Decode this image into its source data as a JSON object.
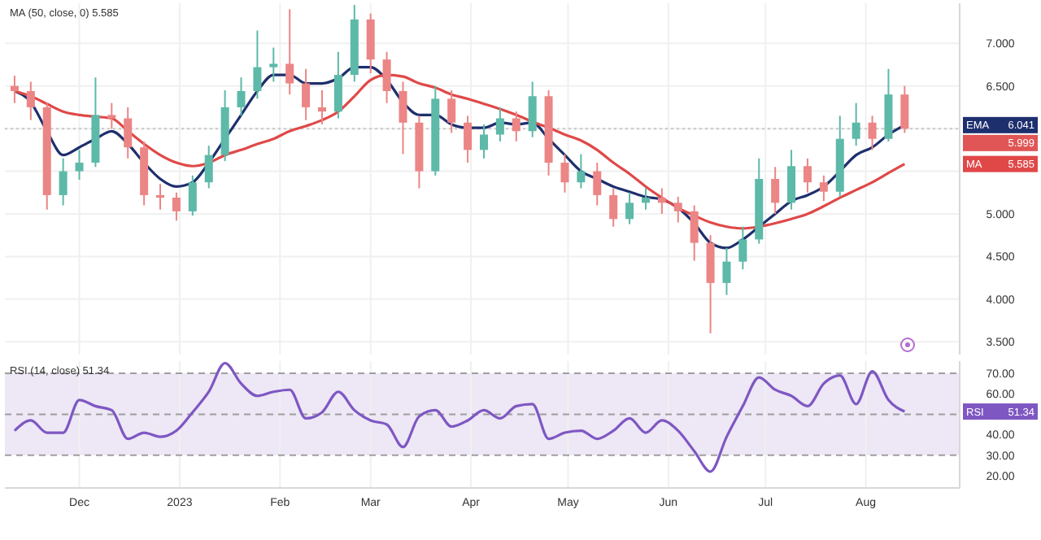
{
  "chart_data": [
    {
      "type": "candlestick",
      "title": "MA (50, close, 0) 5.585",
      "x": [
        "2022-11-11",
        "2022-11-16",
        "2022-11-21",
        "2022-11-26",
        "2022-12-01",
        "2022-12-06",
        "2022-12-11",
        "2022-12-16",
        "2022-12-21",
        "2022-12-26",
        "2022-12-31",
        "2023-01-05",
        "2023-01-10",
        "2023-01-15",
        "2023-01-20",
        "2023-01-25",
        "2023-01-30",
        "2023-02-04",
        "2023-02-09",
        "2023-02-14",
        "2023-02-19",
        "2023-02-24",
        "2023-03-01",
        "2023-03-06",
        "2023-03-11",
        "2023-03-16",
        "2023-03-21",
        "2023-03-26",
        "2023-03-31",
        "2023-04-05",
        "2023-04-10",
        "2023-04-15",
        "2023-04-20",
        "2023-04-25",
        "2023-04-30",
        "2023-05-05",
        "2023-05-10",
        "2023-05-15",
        "2023-05-20",
        "2023-05-25",
        "2023-05-30",
        "2023-06-04",
        "2023-06-09",
        "2023-06-14",
        "2023-06-19",
        "2023-06-24",
        "2023-06-29",
        "2023-07-04",
        "2023-07-09",
        "2023-07-14",
        "2023-07-19",
        "2023-07-24",
        "2023-07-29",
        "2023-08-03",
        "2023-08-08",
        "2023-08-13"
      ],
      "ohlc": [
        [
          6.5,
          6.62,
          6.3,
          6.44
        ],
        [
          6.44,
          6.55,
          6.1,
          6.25
        ],
        [
          6.25,
          6.3,
          5.05,
          5.22
        ],
        [
          5.22,
          5.65,
          5.1,
          5.5
        ],
        [
          5.5,
          5.75,
          5.4,
          5.6
        ],
        [
          5.6,
          6.6,
          5.55,
          6.16
        ],
        [
          6.16,
          6.3,
          6.0,
          6.12
        ],
        [
          6.12,
          6.25,
          5.65,
          5.78
        ],
        [
          5.78,
          5.85,
          5.1,
          5.22
        ],
        [
          5.22,
          5.35,
          5.05,
          5.19
        ],
        [
          5.19,
          5.25,
          4.92,
          5.03
        ],
        [
          5.03,
          5.45,
          4.98,
          5.37
        ],
        [
          5.37,
          5.8,
          5.3,
          5.69
        ],
        [
          5.69,
          6.45,
          5.62,
          6.25
        ],
        [
          6.25,
          6.6,
          6.15,
          6.44
        ],
        [
          6.44,
          7.15,
          6.35,
          6.72
        ],
        [
          6.72,
          6.95,
          6.55,
          6.76
        ],
        [
          6.76,
          7.4,
          6.4,
          6.53
        ],
        [
          6.53,
          6.7,
          6.1,
          6.25
        ],
        [
          6.25,
          6.45,
          6.05,
          6.2
        ],
        [
          6.2,
          6.9,
          6.12,
          6.63
        ],
        [
          6.63,
          7.45,
          6.55,
          7.28
        ],
        [
          7.28,
          7.35,
          6.65,
          6.81
        ],
        [
          6.81,
          6.9,
          6.3,
          6.44
        ],
        [
          6.44,
          6.55,
          5.7,
          6.07
        ],
        [
          6.07,
          6.15,
          5.3,
          5.5
        ],
        [
          5.5,
          6.5,
          5.45,
          6.35
        ],
        [
          6.35,
          6.45,
          5.95,
          6.07
        ],
        [
          6.07,
          6.15,
          5.6,
          5.75
        ],
        [
          5.75,
          6.05,
          5.65,
          5.93
        ],
        [
          5.93,
          6.25,
          5.85,
          6.12
        ],
        [
          6.12,
          6.2,
          5.85,
          5.97
        ],
        [
          5.97,
          6.55,
          5.9,
          6.38
        ],
        [
          6.38,
          6.45,
          5.45,
          5.6
        ],
        [
          5.6,
          5.7,
          5.25,
          5.37
        ],
        [
          5.37,
          5.7,
          5.3,
          5.5
        ],
        [
          5.5,
          5.6,
          5.1,
          5.22
        ],
        [
          5.22,
          5.3,
          4.85,
          4.94
        ],
        [
          4.94,
          5.25,
          4.88,
          5.13
        ],
        [
          5.13,
          5.3,
          5.05,
          5.19
        ],
        [
          5.19,
          5.3,
          5.0,
          5.13
        ],
        [
          5.13,
          5.2,
          4.9,
          5.03
        ],
        [
          5.03,
          5.1,
          4.45,
          4.66
        ],
        [
          4.66,
          4.75,
          3.6,
          4.19
        ],
        [
          4.19,
          4.6,
          4.05,
          4.44
        ],
        [
          4.44,
          4.85,
          4.35,
          4.7
        ],
        [
          4.7,
          5.65,
          4.65,
          5.41
        ],
        [
          5.41,
          5.55,
          5.0,
          5.13
        ],
        [
          5.13,
          5.75,
          5.05,
          5.56
        ],
        [
          5.56,
          5.65,
          5.25,
          5.37
        ],
        [
          5.37,
          5.45,
          5.15,
          5.26
        ],
        [
          5.26,
          6.15,
          5.2,
          5.88
        ],
        [
          5.88,
          6.3,
          5.8,
          6.07
        ],
        [
          6.07,
          6.15,
          5.75,
          5.88
        ],
        [
          5.88,
          6.7,
          5.85,
          6.4
        ],
        [
          6.4,
          6.5,
          5.95,
          5.999
        ]
      ],
      "series": [
        {
          "name": "EMA",
          "type": "line",
          "color": "#1e2f6e",
          "values": [
            6.44,
            6.31,
            5.97,
            5.69,
            5.78,
            5.88,
            5.97,
            5.82,
            5.6,
            5.41,
            5.32,
            5.37,
            5.6,
            5.88,
            6.16,
            6.44,
            6.63,
            6.63,
            6.53,
            6.53,
            6.59,
            6.72,
            6.72,
            6.57,
            6.31,
            6.16,
            6.16,
            6.05,
            6.01,
            6.01,
            6.07,
            6.05,
            6.07,
            5.88,
            5.69,
            5.5,
            5.41,
            5.32,
            5.26,
            5.2,
            5.17,
            5.07,
            4.89,
            4.66,
            4.6,
            4.7,
            4.85,
            5.0,
            5.15,
            5.22,
            5.32,
            5.5,
            5.69,
            5.78,
            5.93,
            6.041
          ]
        },
        {
          "name": "MA",
          "type": "line",
          "color": "#e04848",
          "values": [
            6.44,
            6.38,
            6.29,
            6.2,
            6.16,
            6.14,
            6.12,
            5.97,
            5.82,
            5.69,
            5.6,
            5.56,
            5.6,
            5.69,
            5.75,
            5.82,
            5.88,
            5.97,
            6.03,
            6.1,
            6.2,
            6.38,
            6.57,
            6.63,
            6.61,
            6.53,
            6.48,
            6.4,
            6.35,
            6.29,
            6.23,
            6.16,
            6.08,
            6.01,
            5.93,
            5.86,
            5.75,
            5.6,
            5.47,
            5.32,
            5.19,
            5.07,
            4.98,
            4.9,
            4.85,
            4.83,
            4.85,
            4.89,
            4.94,
            5.0,
            5.09,
            5.19,
            5.28,
            5.37,
            5.48,
            5.585
          ]
        }
      ],
      "annotations": [
        "6.041",
        "5.585",
        "5.999"
      ],
      "ref_lines": [
        {
          "axis": "y",
          "value": 5.999,
          "color": "#c8c8c8",
          "line_style": "dotted"
        }
      ],
      "xlim": [
        "2022-11-08",
        "2023-08-30"
      ],
      "xticks": [
        {
          "value": "2022-12-01",
          "label": null
        },
        {
          "value": "2023-01-01",
          "label": null
        },
        {
          "value": "2023-02-01",
          "label": null
        },
        {
          "value": "2023-03-01",
          "label": null
        },
        {
          "value": "2023-04-01",
          "label": null
        },
        {
          "value": "2023-05-01",
          "label": null
        },
        {
          "value": "2023-06-01",
          "label": null
        },
        {
          "value": "2023-07-01",
          "label": null
        },
        {
          "value": "2023-08-01",
          "label": null
        }
      ],
      "ylim": [
        3.35,
        7.47
      ],
      "yticks": [
        {
          "value": 3.5,
          "label": "3.500"
        },
        {
          "value": 4,
          "label": "4.000"
        },
        {
          "value": 4.5,
          "label": "4.500"
        },
        {
          "value": 5,
          "label": "5.000"
        },
        {
          "value": 5.5,
          "label": null
        },
        {
          "value": 6,
          "label": null
        },
        {
          "value": 6.5,
          "label": "6.500"
        },
        {
          "value": 7,
          "label": "7.000"
        }
      ],
      "grid": true,
      "tick_labels": "y"
    },
    {
      "type": "line",
      "title": "RSI (14, close) 51.34",
      "x": [
        "2022-11-11",
        "2022-11-16",
        "2022-11-21",
        "2022-11-26",
        "2022-12-01",
        "2022-12-06",
        "2022-12-11",
        "2022-12-16",
        "2022-12-21",
        "2022-12-26",
        "2022-12-31",
        "2023-01-05",
        "2023-01-10",
        "2023-01-15",
        "2023-01-20",
        "2023-01-25",
        "2023-01-30",
        "2023-02-04",
        "2023-02-09",
        "2023-02-14",
        "2023-02-19",
        "2023-02-24",
        "2023-03-01",
        "2023-03-06",
        "2023-03-11",
        "2023-03-16",
        "2023-03-21",
        "2023-03-26",
        "2023-03-31",
        "2023-04-05",
        "2023-04-10",
        "2023-04-15",
        "2023-04-20",
        "2023-04-25",
        "2023-04-30",
        "2023-05-05",
        "2023-05-10",
        "2023-05-15",
        "2023-05-20",
        "2023-05-25",
        "2023-05-30",
        "2023-06-04",
        "2023-06-09",
        "2023-06-14",
        "2023-06-19",
        "2023-06-24",
        "2023-06-29",
        "2023-07-04",
        "2023-07-09",
        "2023-07-14",
        "2023-07-19",
        "2023-07-24",
        "2023-07-29",
        "2023-08-03",
        "2023-08-08",
        "2023-08-13"
      ],
      "series": [
        {
          "name": "RSI",
          "color": "#7e57c2",
          "values": [
            42,
            47,
            41,
            41,
            57,
            54,
            52,
            38,
            41,
            39,
            42,
            51,
            61,
            75,
            65,
            59,
            61,
            62,
            48,
            51,
            61,
            52,
            47,
            45,
            34,
            49,
            52,
            44,
            47,
            52,
            48,
            54,
            55,
            38,
            41,
            42,
            38,
            42,
            48,
            41,
            47,
            42,
            32,
            22,
            39,
            54,
            68,
            62,
            59,
            54,
            65,
            69,
            55,
            71,
            57,
            51.34
          ]
        }
      ],
      "annotations": [
        "51.34"
      ],
      "bands": [
        {
          "axis": "y",
          "from": 30,
          "to": 70,
          "color": "#ede7f6"
        }
      ],
      "ref_lines": [
        {
          "axis": "y",
          "value": 70,
          "color": "#9e9e9e",
          "line_style": "dashed"
        },
        {
          "axis": "y",
          "value": 50,
          "color": "#9e9e9e",
          "line_style": "dashed"
        },
        {
          "axis": "y",
          "value": 30,
          "color": "#9e9e9e",
          "line_style": "dashed"
        }
      ],
      "xlim": [
        "2022-11-08",
        "2023-08-30"
      ],
      "xticks": [
        {
          "value": "2022-12-01",
          "label": "Dec"
        },
        {
          "value": "2023-01-01",
          "label": "2023"
        },
        {
          "value": "2023-02-01",
          "label": "Feb"
        },
        {
          "value": "2023-03-01",
          "label": "Mar"
        },
        {
          "value": "2023-04-01",
          "label": "Apr"
        },
        {
          "value": "2023-05-01",
          "label": "May"
        },
        {
          "value": "2023-06-01",
          "label": "Jun"
        },
        {
          "value": "2023-07-01",
          "label": "Jul"
        },
        {
          "value": "2023-08-01",
          "label": "Aug"
        }
      ],
      "ylim": [
        14,
        76
      ],
      "yticks": [
        {
          "value": 20,
          "label": "20.00"
        },
        {
          "value": 30,
          "label": "30.00"
        },
        {
          "value": 40,
          "label": "40.00"
        },
        {
          "value": 50,
          "label": null
        },
        {
          "value": 60,
          "label": "60.00"
        },
        {
          "value": 70,
          "label": "70.00"
        }
      ],
      "grid": "x",
      "marker": "none",
      "line_style": "solid"
    }
  ]
}
